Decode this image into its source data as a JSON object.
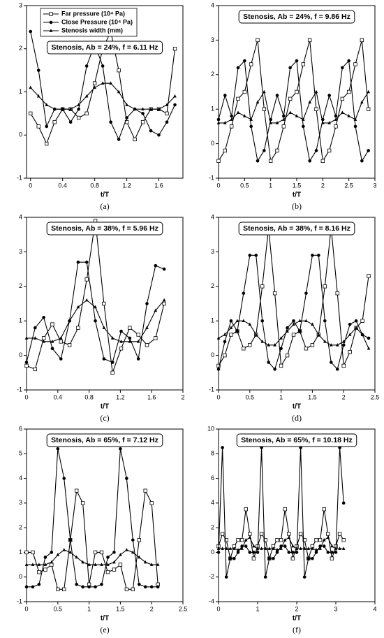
{
  "chart_data": [
    {
      "type": "line",
      "title": "Stenosis, Ab = 24%, f = 6.11 Hz",
      "xlabel": "t/T",
      "caption": "(a)",
      "legend": "top-left",
      "xlim": [
        -0.05,
        1.9
      ],
      "xticks": [
        0,
        0.4,
        0.8,
        1.2,
        1.6
      ],
      "ylim": [
        -1,
        3
      ],
      "yticks": [
        -1,
        0,
        1,
        2,
        3
      ],
      "x": [
        0,
        0.1,
        0.2,
        0.3,
        0.4,
        0.5,
        0.6,
        0.7,
        0.8,
        0.9,
        1.0,
        1.1,
        1.2,
        1.3,
        1.4,
        1.5,
        1.6,
        1.7,
        1.8
      ],
      "series": [
        {
          "name": "Far pressure (10⁴ Pa)",
          "color": "#000000",
          "marker": "square",
          "values": [
            0.5,
            0.2,
            -0.2,
            0.3,
            0.6,
            0.6,
            0.4,
            0.5,
            1.2,
            2.0,
            2.4,
            1.5,
            0.3,
            -0.1,
            0.3,
            0.6,
            0.6,
            0.5,
            2.0
          ]
        },
        {
          "name": "Close Pressure (10⁴ Pa)",
          "color": "#000000",
          "marker": "circle",
          "values": [
            2.4,
            1.5,
            0.2,
            0.6,
            0.6,
            0.3,
            0.6,
            1.6,
            2.1,
            1.6,
            0.3,
            -0.1,
            0.4,
            0.6,
            0.5,
            0.1,
            0.0,
            0.3,
            0.7
          ]
        },
        {
          "name": "Stenosis width (mm)",
          "color": "#000000",
          "marker": "triangle",
          "values": [
            1.1,
            0.9,
            0.7,
            0.6,
            0.6,
            0.6,
            0.7,
            0.9,
            1.1,
            1.2,
            1.2,
            1.0,
            0.7,
            0.6,
            0.6,
            0.6,
            0.6,
            0.7,
            0.9
          ]
        }
      ]
    },
    {
      "type": "line",
      "title": "Stenosis, Ab = 24%, f = 9.86 Hz",
      "xlabel": "t/T",
      "caption": "(b)",
      "xlim": [
        0,
        3
      ],
      "xticks": [
        0,
        0.5,
        1,
        1.5,
        2,
        2.5,
        3
      ],
      "ylim": [
        -1,
        4
      ],
      "yticks": [
        -1,
        0,
        1,
        2,
        3,
        4
      ],
      "x": [
        0,
        0.125,
        0.25,
        0.375,
        0.5,
        0.625,
        0.75,
        0.875,
        1.0,
        1.125,
        1.25,
        1.375,
        1.5,
        1.625,
        1.75,
        1.875,
        2.0,
        2.125,
        2.25,
        2.375,
        2.5,
        2.625,
        2.75,
        2.875
      ],
      "series": [
        {
          "color": "#000000",
          "marker": "square",
          "values": [
            -0.5,
            -0.2,
            0.5,
            1.3,
            1.5,
            2.3,
            3.0,
            1.0,
            -0.5,
            -0.2,
            0.5,
            1.3,
            1.5,
            2.3,
            3.0,
            1.0,
            -0.5,
            -0.2,
            0.5,
            1.3,
            1.5,
            2.3,
            3.0,
            1.0
          ]
        },
        {
          "color": "#000000",
          "marker": "circle",
          "values": [
            0.7,
            1.4,
            0.8,
            2.2,
            2.4,
            0.5,
            -0.5,
            -0.2,
            0.7,
            1.4,
            0.8,
            2.2,
            2.4,
            0.5,
            -0.5,
            -0.2,
            0.7,
            1.4,
            0.8,
            2.2,
            2.4,
            0.5,
            -0.5,
            -0.2
          ]
        },
        {
          "color": "#000000",
          "marker": "triangle",
          "values": [
            0.6,
            0.6,
            0.7,
            0.9,
            0.8,
            0.7,
            1.2,
            1.5,
            0.6,
            0.6,
            0.7,
            0.9,
            0.8,
            0.7,
            1.2,
            1.5,
            0.6,
            0.6,
            0.7,
            0.9,
            0.8,
            0.7,
            1.2,
            1.5
          ]
        }
      ]
    },
    {
      "type": "line",
      "title": "Stenosis, Ab = 38%, f = 5.96 Hz",
      "xlabel": "t/T",
      "caption": "(c)",
      "xlim": [
        0,
        2
      ],
      "xticks": [
        0,
        0.4,
        0.8,
        1.2,
        1.6,
        2
      ],
      "ylim": [
        -1,
        4
      ],
      "yticks": [
        -1,
        0,
        1,
        2,
        3,
        4
      ],
      "x": [
        0,
        0.11,
        0.22,
        0.33,
        0.44,
        0.55,
        0.66,
        0.77,
        0.88,
        0.99,
        1.1,
        1.21,
        1.32,
        1.43,
        1.54,
        1.65,
        1.76
      ],
      "series": [
        {
          "color": "#000000",
          "marker": "square",
          "values": [
            -0.3,
            -0.4,
            0.5,
            0.9,
            0.4,
            0.3,
            0.8,
            2.2,
            3.9,
            1.5,
            -0.5,
            0.2,
            0.8,
            0.6,
            0.3,
            0.5,
            1.5
          ]
        },
        {
          "color": "#000000",
          "marker": "circle",
          "values": [
            -0.2,
            0.8,
            1.1,
            0.2,
            -0.1,
            1.0,
            2.7,
            2.7,
            1.0,
            -0.1,
            -0.2,
            0.7,
            0.5,
            -0.1,
            1.5,
            2.6,
            2.5
          ]
        },
        {
          "color": "#000000",
          "marker": "triangle",
          "values": [
            0.5,
            0.5,
            0.4,
            0.4,
            0.5,
            1.0,
            1.4,
            1.6,
            1.4,
            0.8,
            0.5,
            0.4,
            0.4,
            0.4,
            0.8,
            1.3,
            1.6
          ]
        }
      ]
    },
    {
      "type": "line",
      "title": "Stenosis, Ab = 38%, f = 8.16 Hz",
      "xlabel": "t/T",
      "caption": "(d)",
      "xlim": [
        0,
        2.5
      ],
      "xticks": [
        0,
        0.5,
        1,
        1.5,
        2,
        2.5
      ],
      "ylim": [
        -1,
        4
      ],
      "yticks": [
        -1,
        0,
        1,
        2,
        3,
        4
      ],
      "x": [
        0,
        0.1,
        0.2,
        0.3,
        0.4,
        0.5,
        0.6,
        0.7,
        0.8,
        0.9,
        1.0,
        1.1,
        1.2,
        1.3,
        1.4,
        1.5,
        1.6,
        1.7,
        1.8,
        1.9,
        2.0,
        2.1,
        2.2,
        2.3,
        2.4
      ],
      "series": [
        {
          "color": "#000000",
          "marker": "square",
          "values": [
            -0.3,
            0.0,
            0.6,
            0.7,
            0.2,
            0.3,
            0.6,
            2.0,
            3.7,
            1.8,
            -0.3,
            0.0,
            0.6,
            0.7,
            0.2,
            0.3,
            0.6,
            2.0,
            3.7,
            1.8,
            -0.3,
            0.1,
            0.8,
            1.0,
            2.3
          ]
        },
        {
          "color": "#000000",
          "marker": "circle",
          "values": [
            -0.4,
            0.4,
            1.0,
            0.7,
            1.8,
            2.9,
            2.9,
            1.0,
            -0.2,
            -0.4,
            0.2,
            0.8,
            1.0,
            0.7,
            1.8,
            2.9,
            2.9,
            1.0,
            -0.2,
            -0.4,
            0.3,
            0.9,
            1.0,
            0.6,
            0.5
          ]
        },
        {
          "color": "#000000",
          "marker": "triangle",
          "values": [
            0.5,
            0.6,
            0.8,
            1.0,
            1.0,
            0.9,
            0.6,
            0.4,
            0.3,
            0.3,
            0.5,
            0.7,
            0.9,
            1.0,
            1.0,
            0.9,
            0.6,
            0.4,
            0.3,
            0.3,
            0.4,
            0.6,
            0.8,
            0.6,
            0.2
          ]
        }
      ]
    },
    {
      "type": "line",
      "title": "Stenosis, Ab = 65%, f = 7.12 Hz",
      "xlabel": "t/T",
      "caption": "(e)",
      "xlim": [
        0,
        2.5
      ],
      "xticks": [
        0,
        0.5,
        1,
        1.5,
        2,
        2.5
      ],
      "ylim": [
        -1,
        6
      ],
      "yticks": [
        -1,
        0,
        1,
        2,
        3,
        4,
        5,
        6
      ],
      "x": [
        0,
        0.1,
        0.2,
        0.3,
        0.4,
        0.5,
        0.6,
        0.7,
        0.8,
        0.9,
        1.0,
        1.1,
        1.2,
        1.3,
        1.4,
        1.5,
        1.6,
        1.7,
        1.8,
        1.9,
        2.0,
        2.1
      ],
      "series": [
        {
          "color": "#000000",
          "marker": "square",
          "values": [
            1.0,
            1.0,
            0.2,
            0.3,
            0.5,
            -0.5,
            -0.5,
            1.5,
            3.5,
            3.0,
            -0.3,
            1.0,
            1.0,
            0.2,
            0.3,
            0.5,
            -0.5,
            -0.5,
            1.5,
            3.5,
            3.0,
            -0.3
          ]
        },
        {
          "color": "#000000",
          "marker": "circle",
          "values": [
            -0.4,
            -0.4,
            -0.3,
            0.8,
            1.0,
            5.2,
            4.0,
            1.5,
            -0.3,
            -0.4,
            -0.4,
            -0.4,
            -0.3,
            0.8,
            1.0,
            5.2,
            4.0,
            1.5,
            -0.3,
            -0.4,
            -0.4,
            -0.4
          ]
        },
        {
          "color": "#000000",
          "marker": "triangle",
          "values": [
            0.5,
            0.5,
            0.5,
            0.5,
            0.6,
            0.9,
            1.1,
            1.0,
            0.8,
            0.6,
            0.5,
            0.5,
            0.5,
            0.5,
            0.6,
            0.9,
            1.1,
            1.0,
            0.8,
            0.6,
            0.5,
            0.5
          ]
        }
      ]
    },
    {
      "type": "line",
      "title": "Stenosis, Ab = 65%, f = 10.18 Hz",
      "xlabel": "t/T",
      "caption": "(f)",
      "xlim": [
        0,
        4
      ],
      "xticks": [
        0,
        1,
        2,
        3,
        4
      ],
      "ylim": [
        -4,
        10
      ],
      "yticks": [
        -4,
        -2,
        0,
        2,
        4,
        6,
        8,
        10
      ],
      "x": [
        0,
        0.1,
        0.2,
        0.3,
        0.4,
        0.5,
        0.6,
        0.7,
        0.8,
        0.9,
        1.0,
        1.1,
        1.2,
        1.3,
        1.4,
        1.5,
        1.6,
        1.7,
        1.8,
        1.9,
        2.0,
        2.1,
        2.2,
        2.3,
        2.4,
        2.5,
        2.6,
        2.7,
        2.8,
        2.9,
        3.0,
        3.1,
        3.2
      ],
      "series": [
        {
          "color": "#000000",
          "marker": "square",
          "values": [
            0.5,
            1.5,
            1.0,
            -0.5,
            0.5,
            1.0,
            1.0,
            3.5,
            1.5,
            -0.5,
            0.5,
            1.5,
            1.0,
            -0.5,
            0.5,
            1.0,
            1.0,
            3.5,
            1.5,
            -0.5,
            0.5,
            1.5,
            1.0,
            -0.5,
            0.5,
            1.0,
            1.0,
            3.5,
            1.5,
            -0.5,
            0.5,
            1.5,
            1.0
          ]
        },
        {
          "color": "#000000",
          "marker": "circle",
          "values": [
            0.0,
            8.5,
            -2.0,
            -0.5,
            -0.5,
            0.0,
            0.5,
            0.5,
            0.0,
            0.0,
            0.0,
            8.5,
            -2.0,
            -0.5,
            -0.5,
            0.0,
            0.5,
            0.5,
            0.0,
            0.0,
            0.0,
            8.5,
            -2.0,
            -0.5,
            -0.5,
            0.0,
            0.5,
            0.5,
            0.0,
            0.0,
            0.0,
            8.5,
            4.0
          ]
        },
        {
          "color": "#000000",
          "marker": "triangle",
          "values": [
            0.3,
            0.3,
            0.3,
            0.3,
            0.3,
            0.2,
            0.3,
            1.0,
            1.2,
            0.5,
            0.3,
            0.3,
            0.3,
            0.3,
            0.3,
            0.2,
            0.3,
            1.0,
            1.2,
            0.5,
            0.3,
            0.3,
            0.3,
            0.3,
            0.3,
            0.2,
            0.3,
            1.0,
            1.2,
            0.5,
            0.3,
            0.3,
            0.3
          ]
        }
      ]
    }
  ]
}
